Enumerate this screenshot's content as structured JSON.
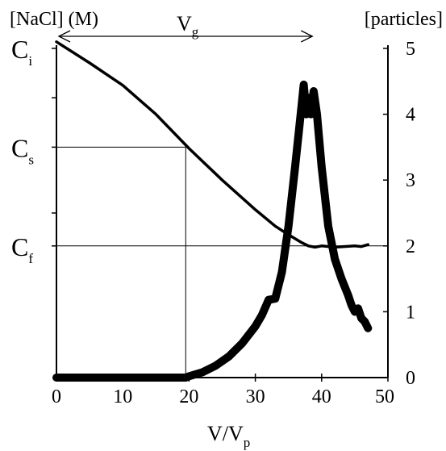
{
  "chart_data": {
    "type": "line",
    "x": {
      "label": "V/Vp",
      "label_main": "V/V",
      "label_sub": "p",
      "range": [
        0,
        50
      ],
      "ticks": [
        "0",
        "10",
        "20",
        "30",
        "40",
        "50"
      ]
    },
    "y_left": {
      "title": "[NaCl] (M)",
      "levels": [
        {
          "main": "C",
          "sub": "i",
          "label": "Ci",
          "value": 5
        },
        {
          "main": "C",
          "sub": "s",
          "label": "Cs",
          "value": 3.5
        },
        {
          "main": "C",
          "sub": "f",
          "label": "Cf",
          "value": 2
        }
      ]
    },
    "y_right": {
      "title": "[particles]",
      "range": [
        0,
        5
      ],
      "ticks": [
        "0",
        "1",
        "2",
        "3",
        "4",
        "5"
      ]
    },
    "annotation": {
      "label": "Vg",
      "main": "V",
      "sub": "g",
      "from_x": 0,
      "to_x": 38.6
    },
    "guides": [
      {
        "type": "vline",
        "x": 19.5,
        "y_to": 3.5
      },
      {
        "type": "hline",
        "y": 3.5,
        "x_to": 19.5
      },
      {
        "type": "hline",
        "y": 2,
        "x_to": 50
      }
    ],
    "series": [
      {
        "axis": "left",
        "points": [
          [
            0,
            5.1
          ],
          [
            5,
            4.78
          ],
          [
            10,
            4.44
          ],
          [
            15,
            4.0
          ],
          [
            20,
            3.48
          ],
          [
            25,
            3.0
          ],
          [
            30,
            2.55
          ],
          [
            33,
            2.3
          ],
          [
            35,
            2.17
          ],
          [
            37,
            2.05
          ],
          [
            38,
            2.0
          ],
          [
            39,
            1.98
          ],
          [
            40,
            2.0
          ],
          [
            42,
            1.98
          ],
          [
            45,
            2.0
          ],
          [
            46,
            1.99
          ],
          [
            47,
            2.02
          ]
        ]
      },
      {
        "axis": "right",
        "points": [
          [
            0,
            0
          ],
          [
            5,
            0
          ],
          [
            10,
            0
          ],
          [
            15,
            0
          ],
          [
            19.5,
            0
          ],
          [
            20,
            0.02
          ],
          [
            21,
            0.05
          ],
          [
            22,
            0.08
          ],
          [
            24,
            0.18
          ],
          [
            26,
            0.32
          ],
          [
            28,
            0.52
          ],
          [
            30,
            0.78
          ],
          [
            31,
            0.95
          ],
          [
            32,
            1.18
          ],
          [
            33,
            1.2
          ],
          [
            34,
            1.6
          ],
          [
            35,
            2.3
          ],
          [
            36,
            3.2
          ],
          [
            37,
            4.15
          ],
          [
            37.3,
            4.45
          ],
          [
            37.7,
            4.0
          ],
          [
            38,
            4.25
          ],
          [
            38.4,
            4.0
          ],
          [
            38.8,
            4.35
          ],
          [
            39.3,
            4.0
          ],
          [
            40,
            3.2
          ],
          [
            41,
            2.3
          ],
          [
            42,
            1.8
          ],
          [
            43,
            1.5
          ],
          [
            44,
            1.25
          ],
          [
            44.5,
            1.1
          ],
          [
            45,
            1.0
          ],
          [
            45.5,
            1.05
          ],
          [
            46,
            0.9
          ],
          [
            46.5,
            0.85
          ],
          [
            47,
            0.75
          ]
        ]
      }
    ]
  }
}
